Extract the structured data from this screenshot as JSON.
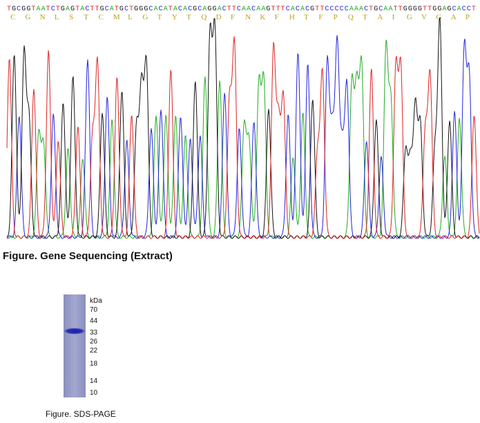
{
  "gene_sequencing": {
    "caption": "Figure. Gene Sequencing (Extract)",
    "dna_sequence": "TGCGGTAATCTGAGTACTTGCATGCTGGGCACATACACGCAGGACTTCAACAAGTTTCACACGTTCCCCCAAACTGCAATTGGGGTTGGAGCACCT",
    "protein_translation": [
      "C",
      "G",
      "N",
      "L",
      "S",
      "T",
      "C",
      "M",
      "L",
      "G",
      "T",
      "Y",
      "T",
      "Q",
      "D",
      "F",
      "N",
      "K",
      "F",
      "H",
      "T",
      "F",
      "P",
      "Q",
      "T",
      "A",
      "I",
      "G",
      "V",
      "G",
      "A",
      "P"
    ],
    "base_colors": {
      "A": "#22aa22",
      "C": "#2222dd",
      "G": "#111111",
      "T": "#dd2222"
    },
    "translation_color": "#b8a020"
  },
  "sds_page": {
    "caption": "Figure. SDS-PAGE",
    "unit_label": "kDa",
    "markers": [
      "70",
      "44",
      "33",
      "26",
      "22",
      "18",
      "14",
      "10"
    ],
    "band_color": "#2a2fb0",
    "lane_color": "#9aa0c8"
  }
}
